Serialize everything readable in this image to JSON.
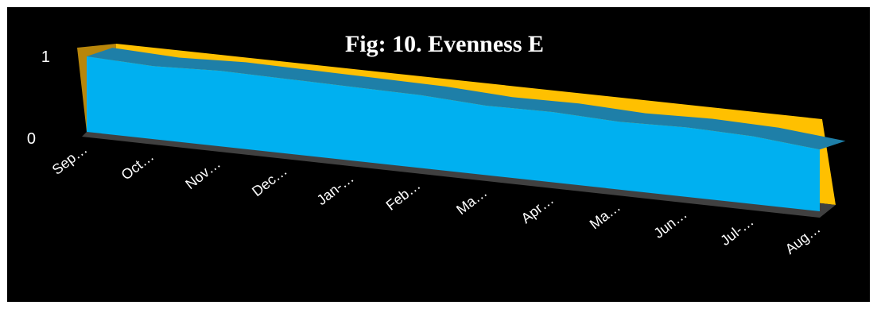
{
  "chart_data": {
    "type": "area",
    "title": "Fig: 10. Evenness E",
    "xlabel": "",
    "ylabel": "",
    "ylim": [
      0,
      1
    ],
    "yticks": [
      "0",
      "1"
    ],
    "categories": [
      "Sep…",
      "Oct…",
      "Nov…",
      "Dec…",
      "Jan-…",
      "Feb…",
      "Ma…",
      "Apr…",
      "Ma…",
      "Jun…",
      "Jul-…",
      "Aug…"
    ],
    "series": [
      {
        "values": [
          0.88,
          0.85,
          0.88,
          0.87,
          0.86,
          0.85,
          0.81,
          0.82,
          0.79,
          0.81,
          0.79,
          0.72
        ]
      }
    ],
    "grid": false,
    "view": "3d",
    "colors": {
      "background": "#000000",
      "area": "#00B0F0",
      "area_top": "#1E7FA8",
      "back_wall": "#FFC000",
      "side_wall": "#B8860B",
      "floor": "#404040"
    }
  }
}
